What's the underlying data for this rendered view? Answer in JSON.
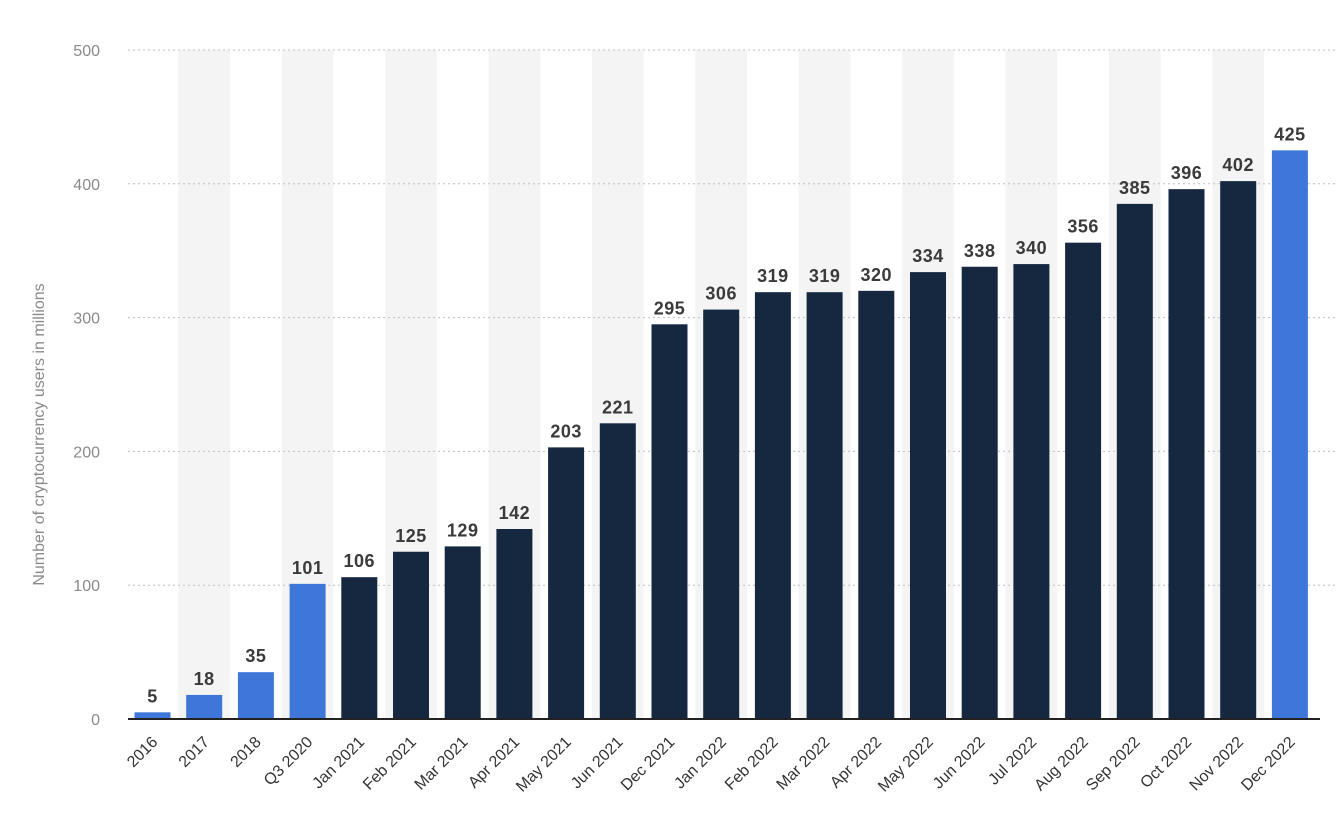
{
  "chart_data": {
    "type": "bar",
    "title": "",
    "xlabel": "",
    "ylabel": "Number of cryptocurrency users in millions",
    "ylim": [
      0,
      500
    ],
    "yticks": [
      0,
      100,
      200,
      300,
      400,
      500
    ],
    "grid": true,
    "categories": [
      "2016",
      "2017",
      "2018",
      "Q3 2020",
      "Jan 2021",
      "Feb 2021",
      "Mar 2021",
      "Apr 2021",
      "May 2021",
      "Jun 2021",
      "Dec 2021",
      "Jan 2022",
      "Feb 2022",
      "Mar 2022",
      "Apr 2022",
      "May 2022",
      "Jun 2022",
      "Jul 2022",
      "Aug 2022",
      "Sep 2022",
      "Oct 2022",
      "Nov 2022",
      "Dec 2022"
    ],
    "values": [
      5,
      18,
      35,
      101,
      106,
      125,
      129,
      142,
      203,
      221,
      295,
      306,
      319,
      319,
      320,
      334,
      338,
      340,
      356,
      385,
      396,
      402,
      425
    ],
    "highlighted": [
      true,
      true,
      true,
      true,
      false,
      false,
      false,
      false,
      false,
      false,
      false,
      false,
      false,
      false,
      false,
      false,
      false,
      false,
      false,
      false,
      false,
      false,
      true
    ],
    "colors": {
      "highlight": "#3f77d9",
      "default": "#162840",
      "band": "#f4f4f4",
      "grid": "#bfbfbf",
      "axis": "#222222"
    }
  }
}
